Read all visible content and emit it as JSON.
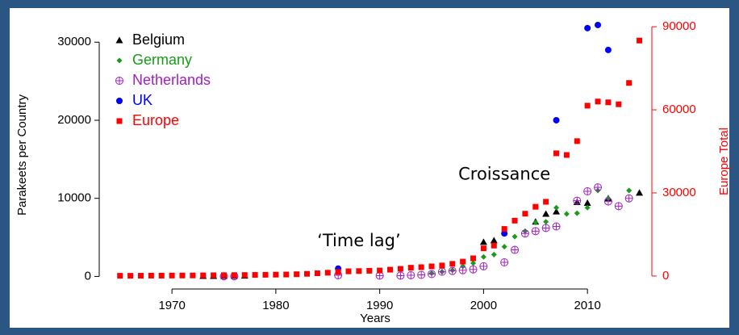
{
  "chart_data": {
    "type": "scatter",
    "x_label": "Years",
    "y_label": "Parakeets per Country",
    "y2_label": "Europe Total",
    "y2_color": "#ff0000",
    "annotations": [
      {
        "text": "Croissance",
        "x": 2002,
        "y": 13000
      },
      {
        "text": "‘Time lag’",
        "x": 1988,
        "y": 4500
      }
    ],
    "legend": "top-left",
    "xlim": [
      1963,
      2016.2
    ],
    "xticks": [
      1970,
      1980,
      1990,
      2000,
      2010
    ],
    "ylim": [
      -1300,
      32300
    ],
    "yticks": [
      0,
      10000,
      20000,
      30000
    ],
    "y2lim": [
      -3800,
      90900
    ],
    "y2ticks": [
      0,
      30000,
      60000,
      90000
    ],
    "series": [
      {
        "name": "Belgium",
        "color": "#000000",
        "marker": "triangle",
        "x": [
          1973,
          1974,
          1975,
          1976,
          1977,
          2000,
          2001,
          2005,
          2006,
          2007,
          2009,
          2010,
          2012,
          2015
        ],
        "values": [
          50,
          50,
          60,
          70,
          80,
          4400,
          4600,
          7000,
          8000,
          8300,
          9500,
          9400,
          10000,
          10700
        ]
      },
      {
        "name": "Germany",
        "color": "#1a9a1a",
        "marker": "diamond",
        "x": [
          1995,
          1996,
          1997,
          1998,
          1999,
          2000,
          2001,
          2002,
          2003,
          2004,
          2005,
          2006,
          2007,
          2008,
          2009,
          2010,
          2011,
          2012,
          2014
        ],
        "values": [
          400,
          600,
          800,
          1300,
          1700,
          2500,
          2800,
          3800,
          5100,
          5800,
          6900,
          7000,
          8800,
          8000,
          8100,
          8800,
          11000,
          10000,
          11000
        ]
      },
      {
        "name": "Netherlands",
        "color": "#a020c0",
        "marker": "circle-plus",
        "x": [
          1975,
          1976,
          1986,
          1990,
          1992,
          1993,
          1994,
          1995,
          1996,
          1997,
          1998,
          1999,
          2000,
          2002,
          2003,
          2004,
          2005,
          2006,
          2007,
          2009,
          2010,
          2011,
          2012,
          2013,
          2014
        ],
        "values": [
          20,
          20,
          150,
          100,
          100,
          150,
          200,
          300,
          600,
          700,
          800,
          900,
          1300,
          1800,
          3400,
          5500,
          5800,
          6200,
          6400,
          9700,
          10900,
          11400,
          9600,
          9000,
          10000
        ]
      },
      {
        "name": "UK",
        "color": "#0000ff",
        "marker": "circle",
        "x": [
          1986,
          2002,
          2007,
          2010,
          2011,
          2012
        ],
        "values": [
          1000,
          5500,
          20000,
          31800,
          32200,
          29000
        ]
      },
      {
        "name": "Europe",
        "color": "#ff0000",
        "marker": "square",
        "axis": "y2",
        "x": [
          1965,
          1966,
          1967,
          1968,
          1969,
          1970,
          1971,
          1972,
          1973,
          1974,
          1975,
          1976,
          1977,
          1978,
          1979,
          1980,
          1981,
          1982,
          1983,
          1984,
          1985,
          1986,
          1987,
          1988,
          1989,
          1990,
          1991,
          1992,
          1993,
          1994,
          1995,
          1996,
          1997,
          1998,
          1999,
          2000,
          2001,
          2002,
          2003,
          2004,
          2005,
          2006,
          2007,
          2008,
          2009,
          2010,
          2011,
          2012,
          2013,
          2014,
          2015
        ],
        "values": [
          100,
          100,
          120,
          150,
          150,
          180,
          200,
          220,
          250,
          280,
          300,
          330,
          360,
          400,
          450,
          500,
          550,
          650,
          800,
          1000,
          1200,
          1500,
          1700,
          1800,
          1900,
          2000,
          2300,
          2600,
          3000,
          3200,
          3500,
          3800,
          4400,
          5200,
          6400,
          10000,
          11000,
          17000,
          20000,
          22500,
          25000,
          26800,
          44300,
          43700,
          48700,
          61500,
          63000,
          62700,
          62000,
          69700,
          85000
        ]
      }
    ]
  }
}
